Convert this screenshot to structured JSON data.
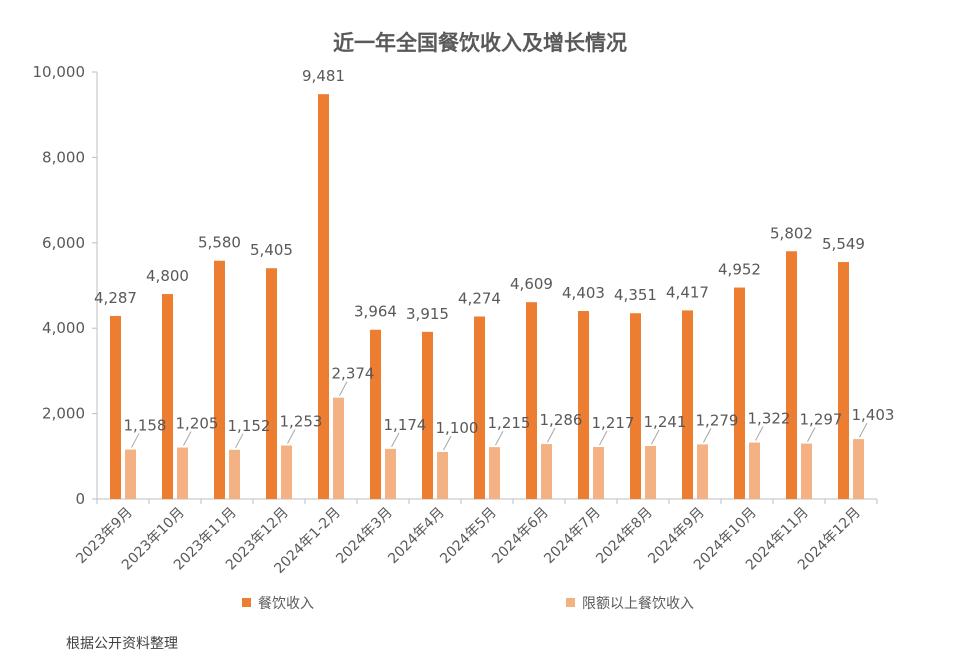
{
  "chart_data": {
    "type": "bar",
    "title": "近一年全国餐饮收入及增长情况",
    "categories": [
      "2023年9月",
      "2023年10月",
      "2023年11月",
      "2023年12月",
      "2024年1-2月",
      "2024年3月",
      "2024年4月",
      "2024年5月",
      "2024年6月",
      "2024年7月",
      "2024年8月",
      "2024年9月",
      "2024年10月",
      "2024年11月",
      "2024年12月"
    ],
    "series": [
      {
        "name": "餐饮收入",
        "color": "#ED7D31",
        "values": [
          4287,
          4800,
          5580,
          5405,
          9481,
          3964,
          3915,
          4274,
          4609,
          4403,
          4351,
          4417,
          4952,
          5802,
          5549
        ],
        "labels": [
          "4,287",
          "4,800",
          "5,580",
          "5,405",
          "9,481",
          "3,964",
          "3,915",
          "4,274",
          "4,609",
          "4,403",
          "4,351",
          "4,417",
          "4,952",
          "5,802",
          "5,549"
        ]
      },
      {
        "name": "限额以上餐饮收入",
        "color": "#F4B183",
        "values": [
          1158,
          1205,
          1152,
          1253,
          2374,
          1174,
          1100,
          1215,
          1286,
          1217,
          1241,
          1279,
          1322,
          1297,
          1403
        ],
        "labels": [
          "1,158",
          "1,205",
          "1,152",
          "1,253",
          "2,374",
          "1,174",
          "1,100",
          "1,215",
          "1,286",
          "1,217",
          "1,241",
          "1,279",
          "1,322",
          "1,297",
          "1,403"
        ]
      }
    ],
    "ylim": [
      0,
      10000
    ],
    "yticks": [
      0,
      2000,
      4000,
      6000,
      8000,
      10000
    ],
    "ytick_labels": [
      "0",
      "2,000",
      "4,000",
      "6,000",
      "8,000",
      "10,000"
    ],
    "grid": false,
    "legend_position": "bottom"
  },
  "source_note": "根据公开资料整理"
}
